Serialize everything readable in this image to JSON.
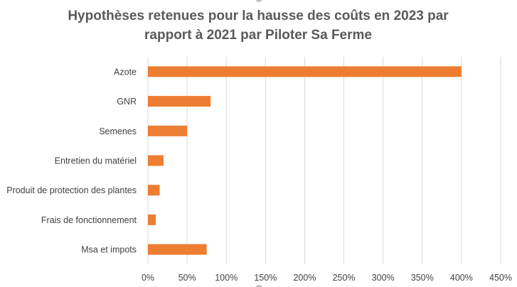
{
  "chart_data": {
    "type": "bar",
    "orientation": "horizontal",
    "title_lines": [
      "Hypothèses retenues pour la hausse des coûts en 2023 par",
      "rapport à 2021 par Piloter Sa Ferme"
    ],
    "categories": [
      "Azote",
      "GNR",
      "Semenes",
      "Entretien du matériel",
      "Produit de protection des plantes",
      "Frais de fonctionnement",
      "Msa et impots"
    ],
    "values": [
      400,
      80,
      50,
      20,
      15,
      10,
      75
    ],
    "value_unit": "%",
    "xlim": [
      0,
      450
    ],
    "x_ticks": [
      "0%",
      "50%",
      "100%",
      "150%",
      "200%",
      "250%",
      "300%",
      "350%",
      "400%",
      "450%"
    ],
    "grid": "vertical",
    "legend": "none",
    "bar_color": "#ED7D31",
    "grid_color": "#D9D9D9"
  }
}
